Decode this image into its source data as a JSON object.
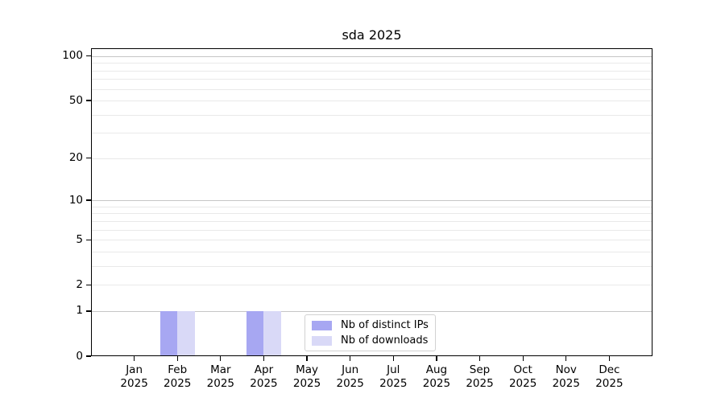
{
  "chart_data": {
    "type": "bar",
    "title": "sda 2025",
    "year_label": "2025",
    "categories": [
      "Jan",
      "Feb",
      "Mar",
      "Apr",
      "May",
      "Jun",
      "Jul",
      "Aug",
      "Sep",
      "Oct",
      "Nov",
      "Dec"
    ],
    "series": [
      {
        "name": "Nb of distinct IPs",
        "color": "#a7a7f2",
        "values": [
          0,
          1,
          0,
          1,
          0,
          0,
          0,
          0,
          0,
          0,
          0,
          0
        ]
      },
      {
        "name": "Nb of downloads",
        "color": "#d9d9f7",
        "values": [
          0,
          1,
          0,
          1,
          0,
          0,
          0,
          0,
          0,
          0,
          0,
          0
        ]
      }
    ],
    "yscale": "log1p",
    "ylim": [
      0,
      113
    ],
    "yticks_labeled": [
      0,
      1,
      2,
      5,
      10,
      20,
      50,
      100
    ],
    "gridlines_decade": [
      1,
      10,
      100
    ],
    "gridlines_minor": [
      2,
      3,
      4,
      5,
      6,
      7,
      8,
      9,
      20,
      30,
      40,
      50,
      60,
      70,
      80,
      90
    ],
    "grid": "horizontal",
    "legend_position": "inside bottom-center"
  },
  "style": {
    "background": "#ffffff",
    "spine_color": "#000000",
    "text_color": "#000000",
    "grid_decade_color": "#c6c6c6",
    "grid_minor_color": "#e9e9e9",
    "legend_border_color": "#d2d2d2"
  }
}
